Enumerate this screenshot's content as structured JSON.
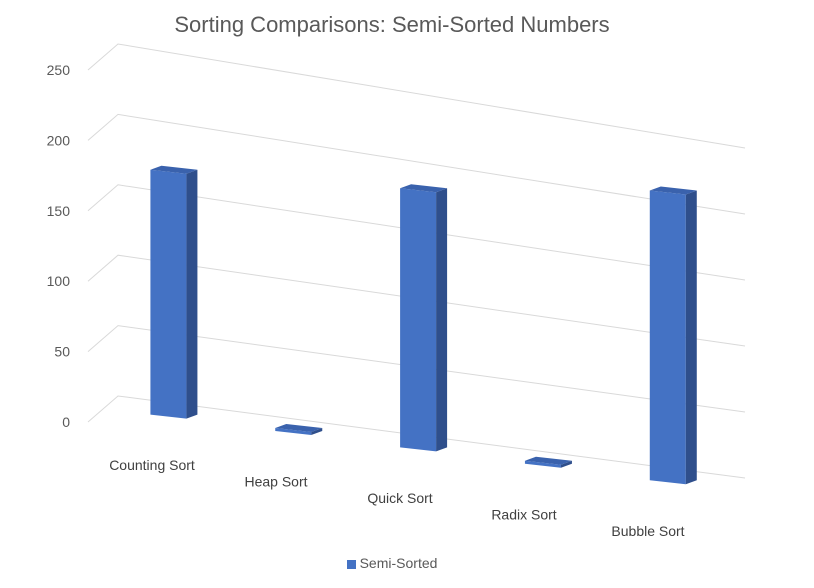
{
  "chart_data": {
    "type": "bar",
    "title": "Sorting Comparisons: Semi-Sorted Numbers",
    "categories": [
      "Counting Sort",
      "Heap Sort",
      "Quick Sort",
      "Radix Sort",
      "Bubble Sort"
    ],
    "series": [
      {
        "name": "Semi-Sorted",
        "values": [
          175,
          2,
          190,
          2,
          218
        ]
      }
    ],
    "ylim": [
      0,
      250
    ],
    "yticks": [
      0,
      50,
      100,
      150,
      200,
      250
    ],
    "grid": true,
    "legend": "bottom",
    "colors": {
      "front": "#4472c4",
      "side": "#2f4f8c",
      "top": "#3a62ad"
    }
  }
}
